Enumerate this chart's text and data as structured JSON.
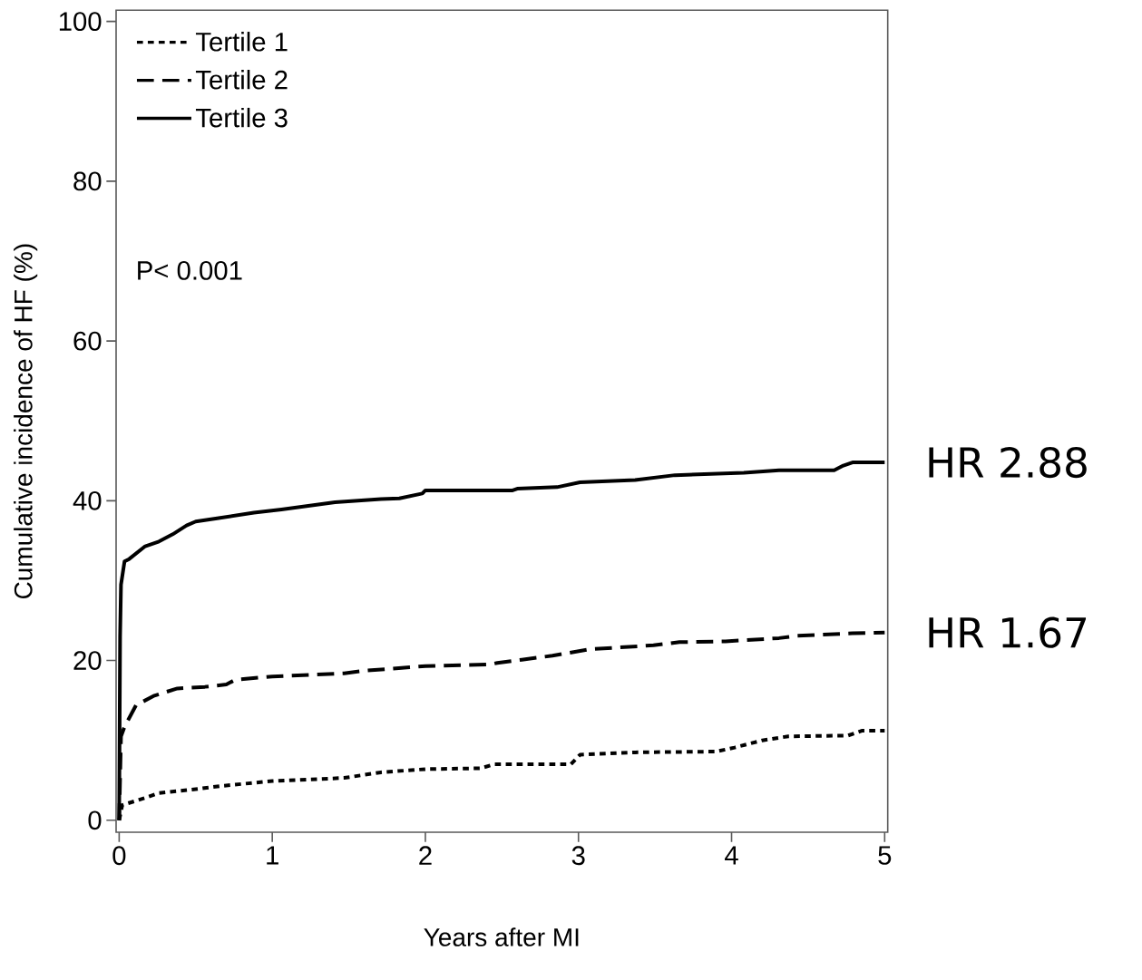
{
  "chart_data": {
    "type": "line",
    "xlabel": "Years after MI",
    "ylabel": "Cumulative incidence of HF (%)",
    "xlim": [
      -0.02,
      5.02
    ],
    "ylim": [
      -1.5,
      101.4
    ],
    "xticks": [
      0,
      1,
      2,
      3,
      4,
      5
    ],
    "yticks": [
      0,
      20,
      40,
      60,
      80,
      100
    ],
    "legend": "top left",
    "grid": false,
    "annotations": [
      "P< 0.001",
      {
        "text": "HR 2.88",
        "x": 5,
        "y": 44.8
      },
      {
        "text": "HR 1.67",
        "x": 5,
        "y": 23.5
      }
    ],
    "series": [
      {
        "name": "Tertile 1",
        "color": "#000000",
        "line_style": "dotted",
        "x": [
          0,
          0.02,
          0.17,
          0.26,
          0.5,
          0.67,
          1.0,
          1.47,
          1.71,
          2.0,
          2.36,
          2.45,
          2.95,
          3.01,
          3.37,
          3.9,
          4.02,
          4.2,
          4.37,
          4.76,
          4.85,
          5
        ],
        "values": [
          0,
          1.9,
          2.8,
          3.4,
          3.9,
          4.3,
          4.9,
          5.3,
          6.0,
          6.4,
          6.5,
          7.0,
          7.0,
          8.2,
          8.5,
          8.6,
          9.1,
          10.0,
          10.5,
          10.6,
          11.2,
          11.2
        ]
      },
      {
        "name": "Tertile 2",
        "color": "#000000",
        "line_style": "dashed",
        "x": [
          0,
          0.012,
          0.035,
          0.11,
          0.23,
          0.38,
          0.56,
          0.7,
          0.76,
          1.0,
          1.47,
          1.59,
          2.0,
          2.42,
          2.47,
          2.63,
          2.83,
          3.07,
          3.49,
          3.66,
          3.96,
          4.31,
          4.43,
          4.79,
          5
        ],
        "values": [
          0,
          10.5,
          11.7,
          14.4,
          15.6,
          16.5,
          16.7,
          17.0,
          17.6,
          18.0,
          18.4,
          18.7,
          19.3,
          19.5,
          19.7,
          20.1,
          20.6,
          21.4,
          21.9,
          22.3,
          22.4,
          22.8,
          23.1,
          23.4,
          23.5
        ]
      },
      {
        "name": "Tertile 3",
        "color": "#000000",
        "line_style": "solid",
        "x": [
          0,
          0.006,
          0.012,
          0.035,
          0.065,
          0.17,
          0.26,
          0.35,
          0.44,
          0.5,
          0.64,
          0.88,
          1.06,
          1.41,
          1.71,
          1.83,
          1.98,
          2.0,
          2.57,
          2.6,
          2.86,
          3.01,
          3.37,
          3.63,
          4.08,
          4.31,
          4.67,
          4.73,
          4.79,
          5
        ],
        "values": [
          0,
          23,
          29.5,
          32.4,
          32.7,
          34.3,
          34.9,
          35.8,
          36.9,
          37.4,
          37.8,
          38.5,
          38.9,
          39.8,
          40.2,
          40.3,
          40.9,
          41.3,
          41.3,
          41.5,
          41.7,
          42.3,
          42.6,
          43.2,
          43.5,
          43.8,
          43.8,
          44.4,
          44.8,
          44.8
        ]
      }
    ]
  }
}
